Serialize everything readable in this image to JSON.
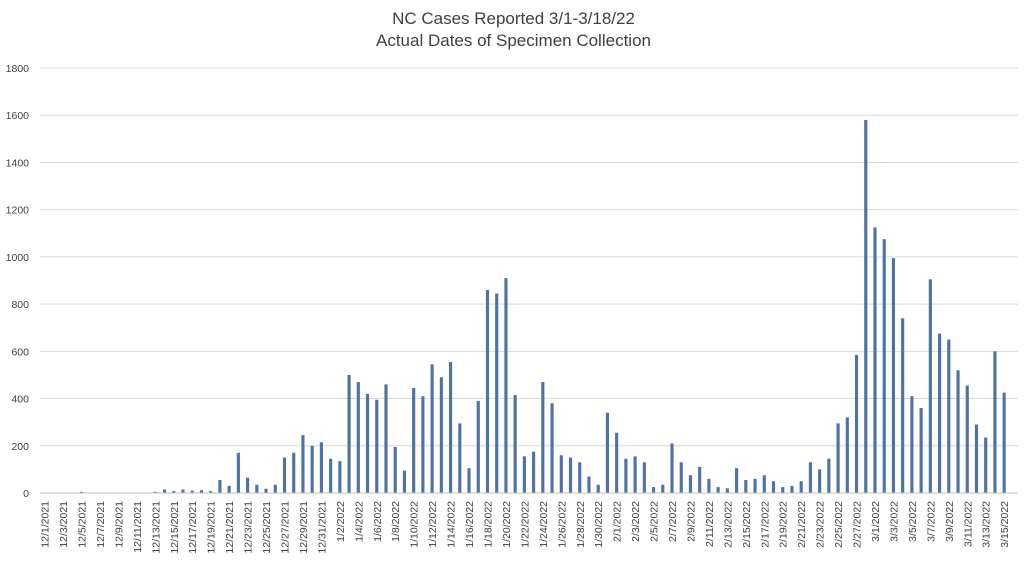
{
  "chart_data": {
    "type": "bar",
    "title": "NC Cases Reported 3/1-3/18/22",
    "subtitle": "Actual Dates of Specimen Collection",
    "xlabel": "",
    "ylabel": "",
    "ylim": [
      0,
      1800
    ],
    "yticks": [
      0,
      200,
      400,
      600,
      800,
      1000,
      1200,
      1400,
      1600,
      1800
    ],
    "grid": true,
    "bar_color": "#4E72A6",
    "grid_color": "#D9D9D9",
    "categories": [
      "12/1/2021",
      "12/2/2021",
      "12/3/2021",
      "12/4/2021",
      "12/5/2021",
      "12/6/2021",
      "12/7/2021",
      "12/8/2021",
      "12/9/2021",
      "12/10/2021",
      "12/11/2021",
      "12/12/2021",
      "12/13/2021",
      "12/14/2021",
      "12/15/2021",
      "12/16/2021",
      "12/17/2021",
      "12/18/2021",
      "12/19/2021",
      "12/20/2021",
      "12/21/2021",
      "12/22/2021",
      "12/23/2021",
      "12/24/2021",
      "12/25/2021",
      "12/26/2021",
      "12/27/2021",
      "12/28/2021",
      "12/29/2021",
      "12/30/2021",
      "12/31/2021",
      "1/1/2022",
      "1/2/2022",
      "1/3/2022",
      "1/4/2022",
      "1/5/2022",
      "1/6/2022",
      "1/7/2022",
      "1/8/2022",
      "1/9/2022",
      "1/10/2022",
      "1/11/2022",
      "1/12/2022",
      "1/13/2022",
      "1/14/2022",
      "1/15/2022",
      "1/16/2022",
      "1/17/2022",
      "1/18/2022",
      "1/19/2022",
      "1/20/2022",
      "1/21/2022",
      "1/22/2022",
      "1/23/2022",
      "1/24/2022",
      "1/25/2022",
      "1/26/2022",
      "1/27/2022",
      "1/28/2022",
      "1/29/2022",
      "1/30/2022",
      "1/31/2022",
      "2/1/2022",
      "2/2/2022",
      "2/3/2022",
      "2/4/2022",
      "2/5/2022",
      "2/6/2022",
      "2/7/2022",
      "2/8/2022",
      "2/9/2022",
      "2/10/2022",
      "2/11/2022",
      "2/12/2022",
      "2/13/2022",
      "2/14/2022",
      "2/15/2022",
      "2/16/2022",
      "2/17/2022",
      "2/18/2022",
      "2/19/2022",
      "2/20/2022",
      "2/21/2022",
      "2/22/2022",
      "2/23/2022",
      "2/24/2022",
      "2/25/2022",
      "2/26/2022",
      "2/27/2022",
      "2/28/2022",
      "3/1/2022",
      "3/2/2022",
      "3/3/2022",
      "3/4/2022",
      "3/5/2022",
      "3/6/2022",
      "3/7/2022",
      "3/8/2022",
      "3/9/2022",
      "3/10/2022",
      "3/11/2022",
      "3/12/2022",
      "3/13/2022",
      "3/14/2022",
      "3/15/2022",
      "3/16/2022"
    ],
    "values": [
      0,
      0,
      0,
      0,
      5,
      0,
      0,
      0,
      0,
      0,
      0,
      0,
      5,
      15,
      8,
      15,
      10,
      12,
      8,
      55,
      30,
      170,
      65,
      35,
      18,
      35,
      150,
      170,
      245,
      200,
      215,
      145,
      135,
      500,
      470,
      420,
      395,
      460,
      195,
      95,
      445,
      410,
      545,
      490,
      555,
      295,
      105,
      390,
      860,
      845,
      910,
      415,
      155,
      175,
      470,
      380,
      160,
      150,
      130,
      70,
      35,
      340,
      255,
      145,
      155,
      130,
      25,
      35,
      210,
      130,
      75,
      110,
      60,
      25,
      20,
      105,
      55,
      60,
      75,
      50,
      25,
      30,
      50,
      130,
      100,
      145,
      295,
      320,
      585,
      1580,
      1125,
      1075,
      995,
      740,
      410,
      360,
      905,
      675,
      650,
      520,
      455,
      290,
      235,
      600,
      425,
      0
    ],
    "tick_labels": [
      "12/1/2021",
      "12/3/2021",
      "12/5/2021",
      "12/7/2021",
      "12/9/2021",
      "12/11/2021",
      "12/13/2021",
      "12/15/2021",
      "12/17/2021",
      "12/19/2021",
      "12/21/2021",
      "12/23/2021",
      "12/25/2021",
      "12/27/2021",
      "12/29/2021",
      "12/31/2021",
      "1/2/2022",
      "1/4/2022",
      "1/6/2022",
      "1/8/2022",
      "1/10/2022",
      "1/12/2022",
      "1/14/2022",
      "1/16/2022",
      "1/18/2022",
      "1/20/2022",
      "1/22/2022",
      "1/24/2022",
      "1/26/2022",
      "1/28/2022",
      "1/30/2022",
      "2/1/2022",
      "2/3/2022",
      "2/5/2022",
      "2/7/2022",
      "2/9/2022",
      "2/11/2022",
      "2/13/2022",
      "2/15/2022",
      "2/17/2022",
      "2/19/2022",
      "2/21/2022",
      "2/23/2022",
      "2/25/2022",
      "2/27/2022",
      "3/1/2022",
      "3/3/2022",
      "3/5/2022",
      "3/7/2022",
      "3/9/2022",
      "3/11/2022",
      "3/13/2022",
      "3/15/2022"
    ]
  }
}
